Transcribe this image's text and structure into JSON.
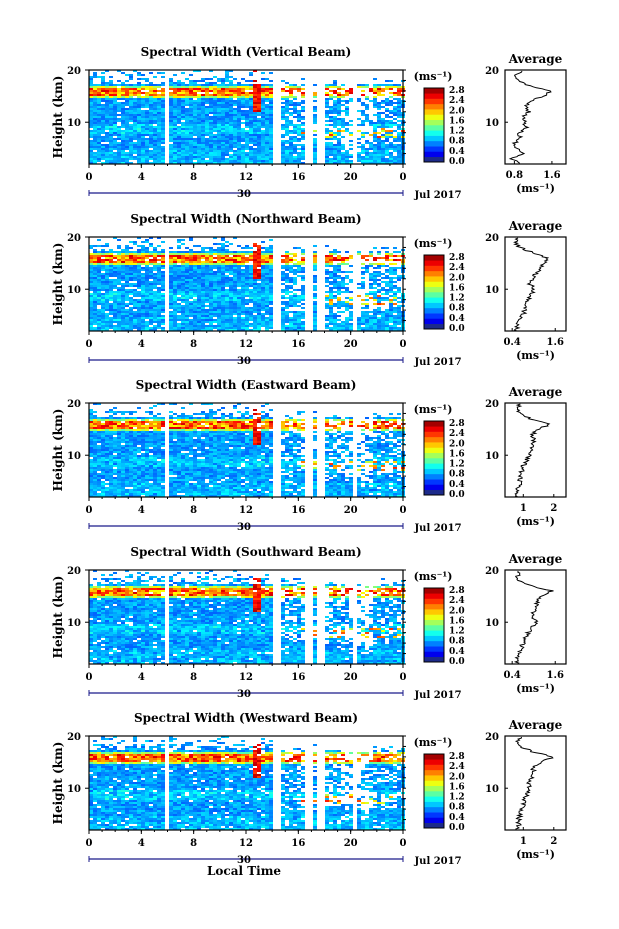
{
  "chart_data": [
    {
      "type": "heatmap",
      "title": "Spectral Width (Vertical Beam)",
      "ylabel": "Height (km)",
      "ylim": [
        2,
        20
      ],
      "yticks": [
        "20",
        "10"
      ],
      "xticks": [
        "0",
        "4",
        "8",
        "12",
        "16",
        "20",
        "0"
      ],
      "xlim": [
        0,
        24
      ],
      "date_day": "30",
      "date_label": "Jul 2017",
      "colorbar": {
        "unit": "(ms⁻¹)",
        "ticks": [
          "2.8",
          "2.4",
          "2.0",
          "1.6",
          "1.2",
          "0.8",
          "0.4",
          "0.0"
        ],
        "range": [
          0,
          2.8
        ]
      },
      "data_gaps_hours": [
        [
          5.6,
          6.0
        ],
        [
          14.0,
          14.5
        ],
        [
          16.5,
          16.9
        ],
        [
          17.4,
          17.8
        ],
        [
          19.9,
          20.2
        ]
      ],
      "enhanced_layer_km": 16,
      "average_profile": {
        "title": "Average",
        "xlabel": "(ms⁻¹)",
        "xticks": [
          "0.8",
          "1.6"
        ],
        "xlim": [
          0.6,
          1.9
        ],
        "yticks": [
          "20",
          "10"
        ],
        "heights_km": [
          2,
          3,
          4,
          5,
          6,
          7,
          8,
          9,
          10,
          11,
          12,
          13,
          14,
          15,
          16,
          17,
          18,
          19,
          20
        ],
        "values": [
          0.9,
          0.75,
          1.0,
          0.85,
          0.8,
          0.95,
          0.9,
          1.05,
          1.0,
          1.0,
          1.1,
          1.05,
          1.15,
          1.4,
          1.6,
          1.1,
          0.9,
          0.85,
          0.95
        ]
      }
    },
    {
      "type": "heatmap",
      "title": "Spectral Width (Northward Beam)",
      "ylabel": "Height (km)",
      "ylim": [
        2,
        20
      ],
      "yticks": [
        "20",
        "10"
      ],
      "xticks": [
        "0",
        "4",
        "8",
        "12",
        "16",
        "20",
        "0"
      ],
      "xlim": [
        0,
        24
      ],
      "date_day": "30",
      "date_label": "Jul 2017",
      "colorbar": {
        "unit": "(ms⁻¹)",
        "ticks": [
          "2.8",
          "2.4",
          "2.0",
          "1.6",
          "1.2",
          "0.8",
          "0.4",
          "0.0"
        ],
        "range": [
          0,
          2.8
        ]
      },
      "data_gaps_hours": [
        [
          5.6,
          6.0
        ],
        [
          14.0,
          14.5
        ],
        [
          16.5,
          16.9
        ],
        [
          17.4,
          17.8
        ],
        [
          19.9,
          20.2
        ]
      ],
      "enhanced_layer_km": 16,
      "average_profile": {
        "title": "Average",
        "xlabel": "(ms⁻¹)",
        "xticks": [
          "0.4",
          "1.6"
        ],
        "xlim": [
          0.2,
          1.9
        ],
        "yticks": [
          "20",
          "10"
        ],
        "heights_km": [
          2,
          3,
          4,
          5,
          6,
          7,
          8,
          9,
          10,
          11,
          12,
          13,
          14,
          15,
          16,
          17,
          18,
          19,
          20
        ],
        "values": [
          0.5,
          0.55,
          0.6,
          0.7,
          0.75,
          0.8,
          0.85,
          0.95,
          1.0,
          0.9,
          1.0,
          1.05,
          1.2,
          1.3,
          1.35,
          1.0,
          0.6,
          0.5,
          0.5
        ]
      }
    },
    {
      "type": "heatmap",
      "title": "Spectral Width (Eastward Beam)",
      "ylabel": "Height (km)",
      "ylim": [
        2,
        20
      ],
      "yticks": [
        "20",
        "10"
      ],
      "xticks": [
        "0",
        "4",
        "8",
        "12",
        "16",
        "20",
        "0"
      ],
      "xlim": [
        0,
        24
      ],
      "date_day": "30",
      "date_label": "Jul 2017",
      "colorbar": {
        "unit": "(ms⁻¹)",
        "ticks": [
          "2.8",
          "2.4",
          "2.0",
          "1.6",
          "1.2",
          "0.8",
          "0.4",
          "0.0"
        ],
        "range": [
          0,
          2.8
        ]
      },
      "data_gaps_hours": [
        [
          5.6,
          6.0
        ],
        [
          14.0,
          14.5
        ],
        [
          16.5,
          16.9
        ],
        [
          17.4,
          17.8
        ],
        [
          19.9,
          20.2
        ]
      ],
      "enhanced_layer_km": 16,
      "average_profile": {
        "title": "Average",
        "xlabel": "(ms⁻¹)",
        "xticks": [
          "1",
          "2"
        ],
        "xlim": [
          0.4,
          2.4
        ],
        "yticks": [
          "20",
          "10"
        ],
        "heights_km": [
          2,
          3,
          4,
          5,
          6,
          7,
          8,
          9,
          10,
          11,
          12,
          13,
          14,
          15,
          16,
          17,
          18,
          19,
          20
        ],
        "values": [
          0.8,
          0.8,
          0.85,
          0.9,
          0.9,
          0.95,
          1.0,
          1.1,
          1.2,
          1.25,
          1.3,
          1.35,
          1.3,
          1.5,
          1.9,
          1.2,
          0.9,
          0.8,
          0.9
        ]
      }
    },
    {
      "type": "heatmap",
      "title": "Spectral Width (Southward Beam)",
      "ylabel": "Height (km)",
      "ylim": [
        2,
        20
      ],
      "yticks": [
        "20",
        "10"
      ],
      "xticks": [
        "0",
        "4",
        "8",
        "12",
        "16",
        "20",
        "0"
      ],
      "xlim": [
        0,
        24
      ],
      "date_day": "30",
      "date_label": "Jul 2017",
      "colorbar": {
        "unit": "(ms⁻¹)",
        "ticks": [
          "2.8",
          "2.4",
          "2.0",
          "1.6",
          "1.2",
          "0.8",
          "0.4",
          "0.0"
        ],
        "range": [
          0,
          2.8
        ]
      },
      "data_gaps_hours": [
        [
          5.6,
          6.0
        ],
        [
          14.0,
          14.5
        ],
        [
          16.5,
          16.9
        ],
        [
          17.4,
          17.8
        ],
        [
          19.9,
          20.2
        ]
      ],
      "enhanced_layer_km": 16,
      "average_profile": {
        "title": "Average",
        "xlabel": "(ms⁻¹)",
        "xticks": [
          "0.4",
          "1.6"
        ],
        "xlim": [
          0.2,
          1.9
        ],
        "yticks": [
          "20",
          "10"
        ],
        "heights_km": [
          2,
          3,
          4,
          5,
          6,
          7,
          8,
          9,
          10,
          11,
          12,
          13,
          14,
          15,
          16,
          17,
          18,
          19,
          20
        ],
        "values": [
          0.5,
          0.55,
          0.6,
          0.65,
          0.7,
          0.75,
          0.85,
          0.95,
          1.05,
          1.0,
          1.0,
          1.05,
          1.1,
          1.2,
          1.5,
          0.9,
          0.6,
          0.55,
          0.6
        ]
      }
    },
    {
      "type": "heatmap",
      "title": "Spectral Width (Westward Beam)",
      "ylabel": "Height (km)",
      "ylim": [
        2,
        20
      ],
      "yticks": [
        "20",
        "10"
      ],
      "xticks": [
        "0",
        "4",
        "8",
        "12",
        "16",
        "20",
        "0"
      ],
      "xlim": [
        0,
        24
      ],
      "date_day": "30",
      "date_label": "Jul 2017",
      "xlabel": "Local Time",
      "colorbar": {
        "unit": "(ms⁻¹)",
        "ticks": [
          "2.8",
          "2.4",
          "2.0",
          "1.6",
          "1.2",
          "0.8",
          "0.4",
          "0.0"
        ],
        "range": [
          0,
          2.8
        ]
      },
      "data_gaps_hours": [
        [
          5.6,
          6.0
        ],
        [
          14.0,
          14.5
        ],
        [
          16.5,
          16.9
        ],
        [
          17.4,
          17.8
        ],
        [
          19.9,
          20.2
        ]
      ],
      "enhanced_layer_km": 16,
      "average_profile": {
        "title": "Average",
        "xlabel": "(ms⁻¹)",
        "xticks": [
          "1",
          "2"
        ],
        "xlim": [
          0.4,
          2.4
        ],
        "yticks": [
          "20",
          "10"
        ],
        "heights_km": [
          2,
          3,
          4,
          5,
          6,
          7,
          8,
          9,
          10,
          11,
          12,
          13,
          14,
          15,
          16,
          17,
          18,
          19,
          20
        ],
        "values": [
          0.8,
          0.85,
          0.85,
          0.9,
          0.95,
          1.0,
          1.05,
          1.15,
          1.2,
          1.2,
          1.25,
          1.3,
          1.35,
          1.6,
          2.0,
          1.3,
          0.9,
          0.8,
          1.0
        ]
      }
    }
  ]
}
